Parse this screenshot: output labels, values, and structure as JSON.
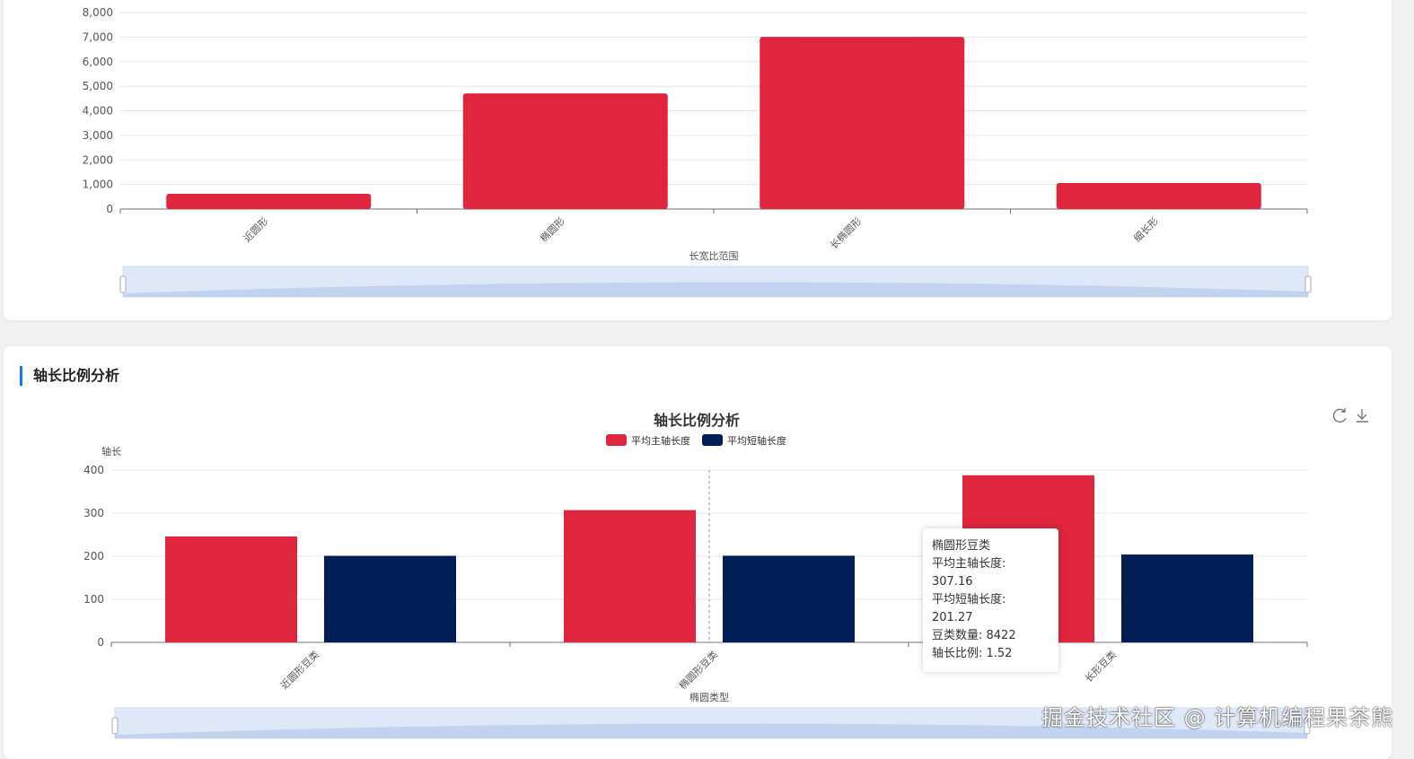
{
  "chart_data": [
    {
      "type": "bar",
      "title": "",
      "xlabel": "长宽比范围",
      "ylabel": "",
      "categories": [
        "近圆形",
        "椭圆形",
        "长椭圆形",
        "细长形"
      ],
      "values": [
        620,
        4710,
        7010,
        1060
      ],
      "ylim": [
        0,
        8000
      ],
      "yticks": [
        "0",
        "1,000",
        "2,000",
        "3,000",
        "4,000",
        "5,000",
        "6,000",
        "7,000",
        "8,000"
      ],
      "grid": true,
      "color": "#e0253f"
    },
    {
      "type": "bar",
      "title": "轴长比例分析",
      "xlabel": "椭圆类型",
      "ylabel": "轴长",
      "categories": [
        "近圆形豆类",
        "椭圆形豆类",
        "长形豆类"
      ],
      "series": [
        {
          "name": "平均主轴长度",
          "values": [
            246,
            307.16,
            388
          ],
          "color": "#e0253f"
        },
        {
          "name": "平均短轴长度",
          "values": [
            201,
            201.27,
            204
          ],
          "color": "#021e56"
        }
      ],
      "ylim": [
        0,
        400
      ],
      "yticks": [
        "0",
        "100",
        "200",
        "300",
        "400"
      ],
      "legend": "top-center",
      "grid": true,
      "tooltip": {
        "title": "椭圆形豆类",
        "lines": [
          "平均主轴长度: 307.16",
          "平均短轴长度: 201.27",
          "豆类数量: 8422",
          "轴长比例: 1.52"
        ]
      }
    }
  ],
  "section2": {
    "title": "轴长比例分析"
  },
  "toolbox": {
    "refresh": "refresh-icon",
    "download": "download-icon"
  },
  "watermark": "掘金技术社区 @ 计算机编程果茶熊"
}
